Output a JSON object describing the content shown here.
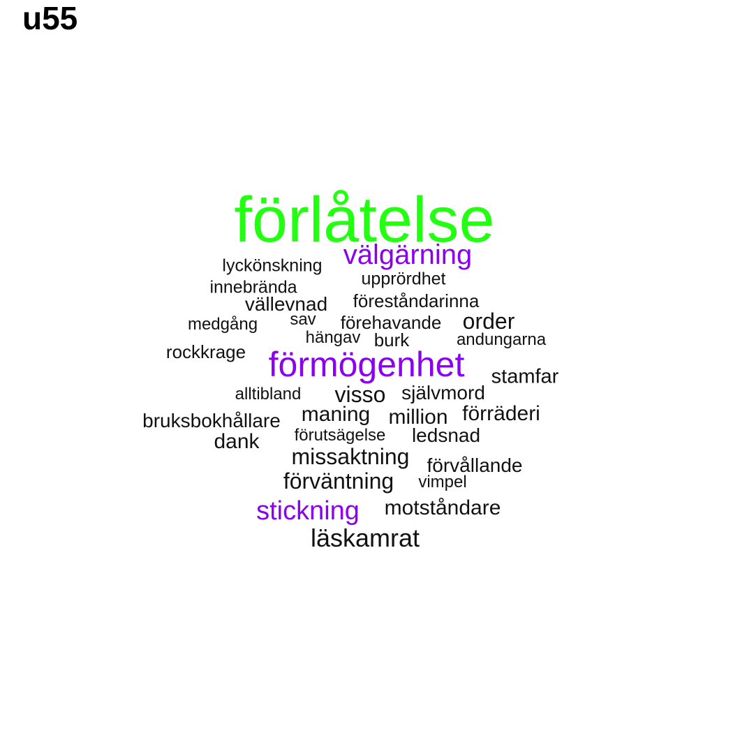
{
  "title": "u55",
  "colors": {
    "green": "#22ff11",
    "purple": "#8b00ee",
    "black": "#111111"
  },
  "words": [
    {
      "text": "förlåtelse",
      "color": "green"
    },
    {
      "text": "välgärning",
      "color": "purple"
    },
    {
      "text": "lyckönskning",
      "color": "black"
    },
    {
      "text": "upprördhet",
      "color": "black"
    },
    {
      "text": "innebrända",
      "color": "black"
    },
    {
      "text": "föreståndarinna",
      "color": "black"
    },
    {
      "text": "vällevnad",
      "color": "black"
    },
    {
      "text": "medgång",
      "color": "black"
    },
    {
      "text": "sav",
      "color": "black"
    },
    {
      "text": "förehavande",
      "color": "black"
    },
    {
      "text": "order",
      "color": "black"
    },
    {
      "text": "hängav",
      "color": "black"
    },
    {
      "text": "burk",
      "color": "black"
    },
    {
      "text": "andungarna",
      "color": "black"
    },
    {
      "text": "rockkrage",
      "color": "black"
    },
    {
      "text": "förmögenhet",
      "color": "purple"
    },
    {
      "text": "stamfar",
      "color": "black"
    },
    {
      "text": "alltibland",
      "color": "black"
    },
    {
      "text": "visso",
      "color": "black"
    },
    {
      "text": "självmord",
      "color": "black"
    },
    {
      "text": "bruksbokhållare",
      "color": "black"
    },
    {
      "text": "maning",
      "color": "black"
    },
    {
      "text": "million",
      "color": "black"
    },
    {
      "text": "förräderi",
      "color": "black"
    },
    {
      "text": "dank",
      "color": "black"
    },
    {
      "text": "förutsägelse",
      "color": "black"
    },
    {
      "text": "ledsnad",
      "color": "black"
    },
    {
      "text": "missaktning",
      "color": "black"
    },
    {
      "text": "förvållande",
      "color": "black"
    },
    {
      "text": "förväntning",
      "color": "black"
    },
    {
      "text": "vimpel",
      "color": "black"
    },
    {
      "text": "stickning",
      "color": "purple"
    },
    {
      "text": "motståndare",
      "color": "black"
    },
    {
      "text": "läskamrat",
      "color": "black"
    }
  ]
}
